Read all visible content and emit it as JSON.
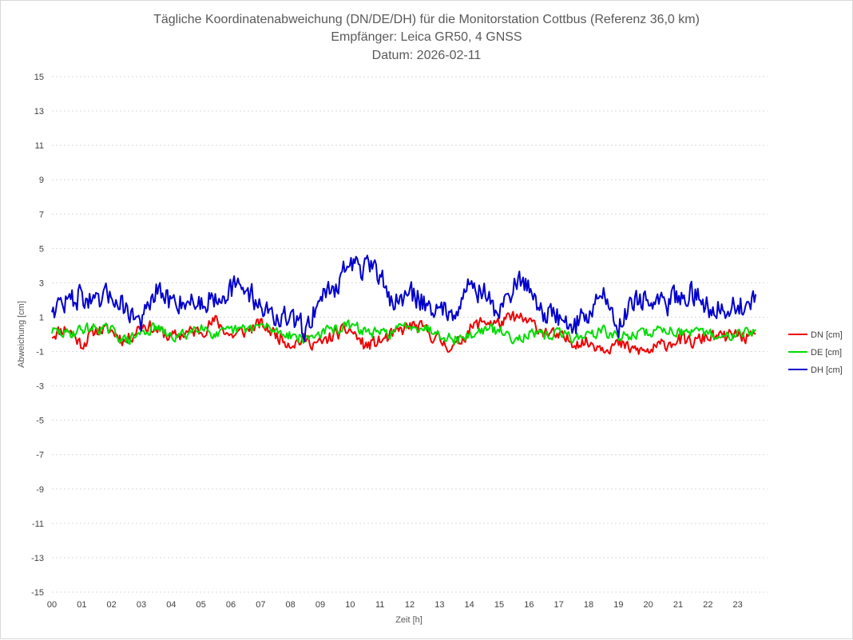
{
  "chart_data": {
    "type": "line",
    "title_lines": [
      "Tägliche Koordinatenabweichung (DN/DE/DH) für die Monitorstation Cottbus (Referenz 36,0 km)",
      "Empfänger: Leica GR50, 4 GNSS",
      "Datum: 2026-02-11"
    ],
    "xlabel": "Zeit [h]",
    "ylabel": "Abweichung [cm]",
    "xlim": [
      0,
      24
    ],
    "ylim": [
      -15,
      15
    ],
    "x_tick_labels": [
      "00",
      "01",
      "02",
      "03",
      "04",
      "05",
      "06",
      "07",
      "08",
      "09",
      "10",
      "11",
      "12",
      "13",
      "14",
      "15",
      "16",
      "17",
      "18",
      "19",
      "20",
      "21",
      "22",
      "23"
    ],
    "y_tick_labels": [
      "15",
      "13",
      "11",
      "9",
      "7",
      "5",
      "3",
      "1",
      "-1",
      "-3",
      "-5",
      "-7",
      "-9",
      "-11",
      "-13",
      "-15"
    ],
    "y_tick_values": [
      15,
      13,
      11,
      9,
      7,
      5,
      3,
      1,
      -1,
      -3,
      -5,
      -7,
      -9,
      -11,
      -13,
      -15
    ],
    "grid": true,
    "legend_position": "right",
    "sample_step_h": 0.5,
    "series": [
      {
        "name": "DN [cm]",
        "color": "#ee0000",
        "values": [
          0.0,
          0.4,
          -0.6,
          0.3,
          0.2,
          -0.4,
          0.6,
          0.3,
          -0.2,
          0.1,
          0.2,
          0.8,
          -0.1,
          0.2,
          0.6,
          0.0,
          -0.5,
          -0.3,
          -0.6,
          0.0,
          0.3,
          -0.7,
          -0.4,
          0.0,
          0.5,
          0.3,
          -0.4,
          -0.8,
          0.3,
          0.8,
          0.6,
          1.0,
          0.7,
          0.2,
          -0.2,
          -0.4,
          -0.5,
          -0.7,
          -0.6,
          -0.9,
          -1.0,
          -0.6,
          -0.3,
          -0.5,
          -0.1,
          -0.2,
          0.0,
          -0.3
        ]
      },
      {
        "name": "DE [cm]",
        "color": "#00dd00",
        "values": [
          0.2,
          0.0,
          0.3,
          0.4,
          0.2,
          -0.4,
          0.1,
          0.4,
          -0.2,
          0.0,
          0.6,
          -0.1,
          0.2,
          0.3,
          0.5,
          0.2,
          0.0,
          -0.3,
          0.1,
          0.3,
          0.5,
          0.2,
          0.0,
          0.2,
          0.6,
          0.4,
          0.1,
          -0.3,
          -0.1,
          0.3,
          0.2,
          -0.2,
          0.0,
          -0.1,
          0.1,
          -0.2,
          0.0,
          0.2,
          -0.2,
          0.0,
          0.1,
          0.3,
          0.2,
          0.0,
          0.1,
          -0.3,
          0.3,
          0.1
        ]
      },
      {
        "name": "DH [cm]",
        "color": "#0000cc",
        "values": [
          1.6,
          1.9,
          2.3,
          1.6,
          2.4,
          1.5,
          0.7,
          2.4,
          1.9,
          2.0,
          1.8,
          2.3,
          2.6,
          2.7,
          1.7,
          1.0,
          0.8,
          0.3,
          2.2,
          2.8,
          4.2,
          3.8,
          3.5,
          1.7,
          2.4,
          1.9,
          1.3,
          1.5,
          2.9,
          2.4,
          1.1,
          3.0,
          2.9,
          1.2,
          1.0,
          0.4,
          1.3,
          2.4,
          0.4,
          2.2,
          1.9,
          1.6,
          2.3,
          2.4,
          1.6,
          1.7,
          1.5,
          2.0
        ]
      }
    ]
  }
}
